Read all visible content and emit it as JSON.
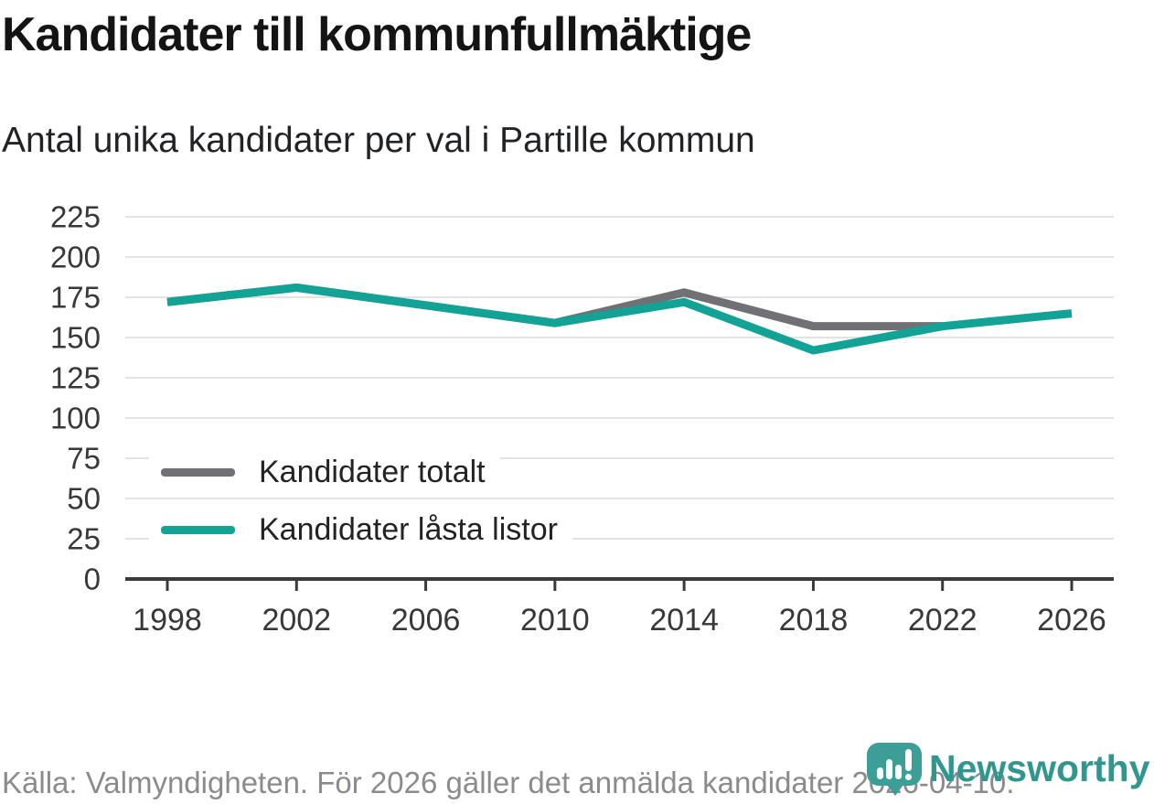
{
  "title": "Kandidater till kommunfullmäktige",
  "subtitle": "Antal unika kandidater per val i Partille kommun",
  "legend": {
    "items": [
      {
        "label": "Kandidater totalt",
        "color": "#717175"
      },
      {
        "label": "Kandidater låsta listor",
        "color": "#12a296"
      }
    ]
  },
  "footer": {
    "source_text": "Källa: Valmyndigheten. För 2026 gäller det anmälda kandidater 2026-04-10.",
    "brand": "Newsworthy"
  },
  "colors": {
    "total_line": "#717175",
    "locked_line": "#12a296",
    "gridline": "#e3e3e3",
    "axis": "#3a3a3a",
    "tick_text": "#383838",
    "footer_text": "#8b8b8f",
    "brand_teal": "#2f978e",
    "logo_pin": "#3d9e97"
  },
  "chart_data": {
    "type": "line",
    "x": [
      1998,
      2002,
      2006,
      2010,
      2014,
      2018,
      2022,
      2026
    ],
    "series": [
      {
        "name": "Kandidater totalt",
        "color": "#717175",
        "values": [
          172,
          181,
          170,
          159,
          178,
          157,
          157,
          null
        ]
      },
      {
        "name": "Kandidater låsta listor",
        "color": "#12a296",
        "values": [
          172,
          181,
          170,
          159,
          172,
          142,
          157,
          165
        ]
      }
    ],
    "title": "Kandidater till kommunfullmäktige",
    "xlabel": "",
    "ylabel": "",
    "ylim": [
      0,
      225
    ],
    "yticks": [
      0,
      25,
      50,
      75,
      100,
      125,
      150,
      175,
      200,
      225
    ],
    "grid": true,
    "legend_position": "inside-bottom-left"
  }
}
